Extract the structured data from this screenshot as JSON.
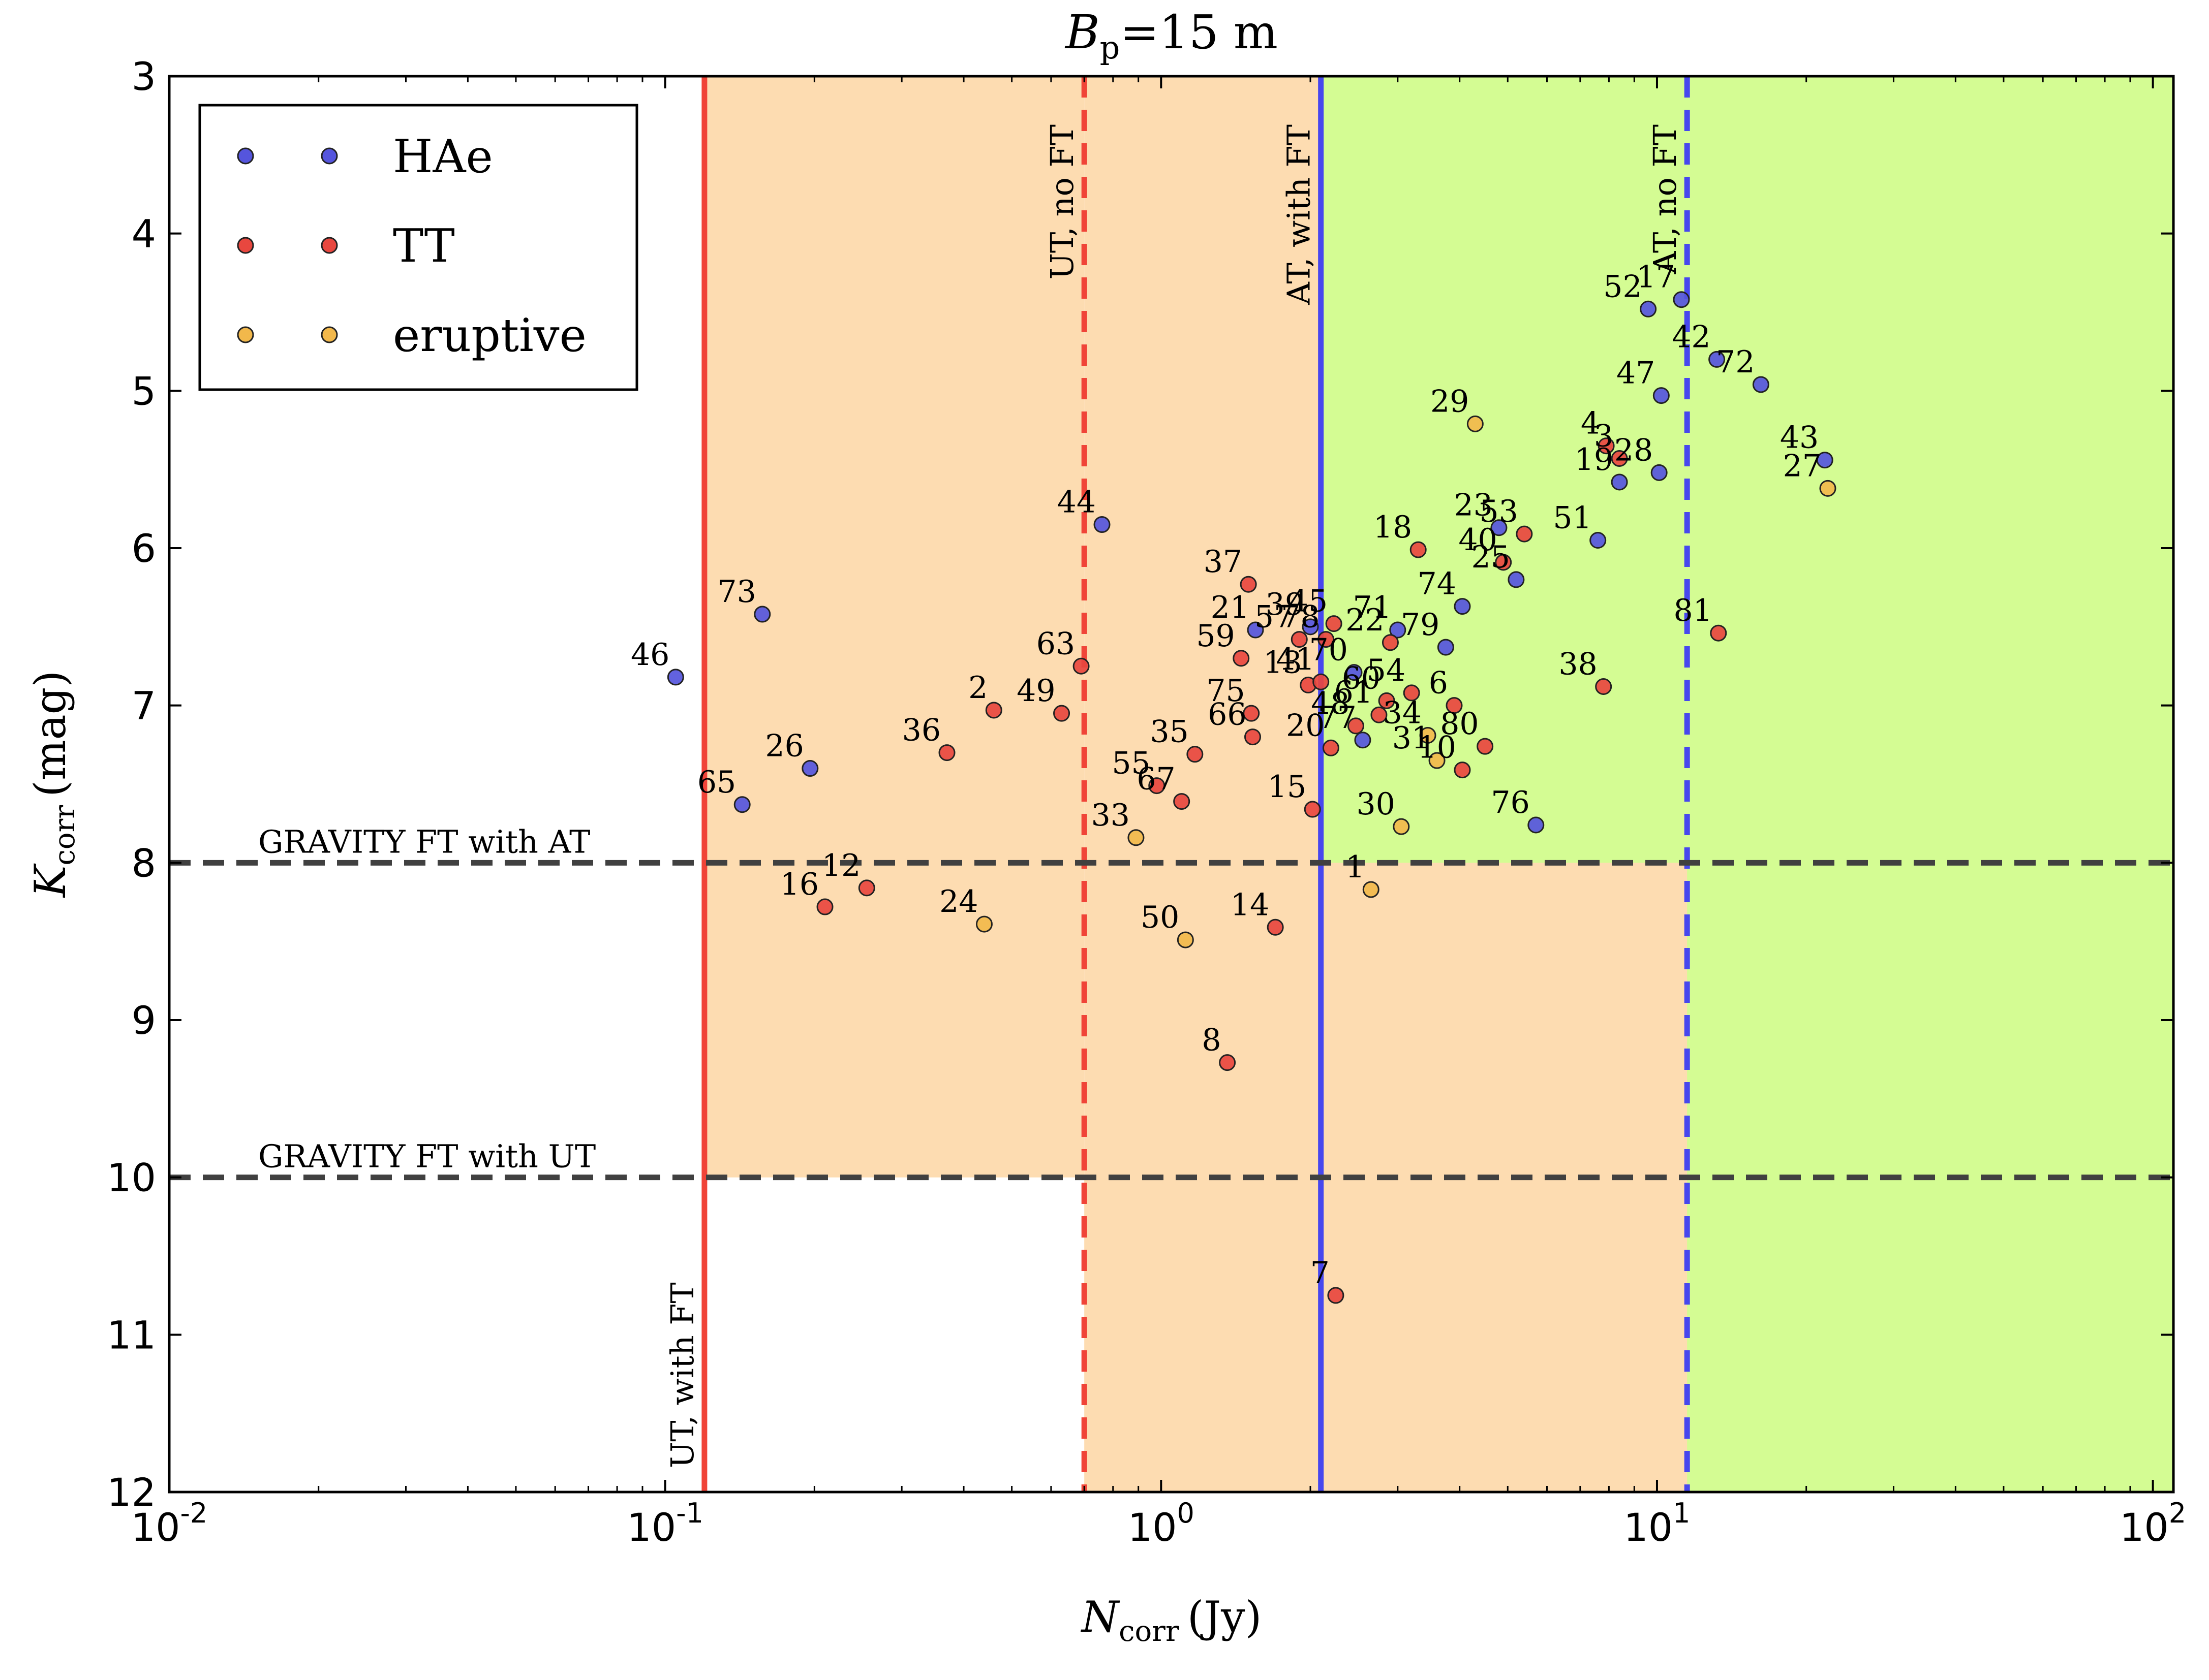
{
  "chart_data": {
    "type": "scatter",
    "title_symbol": "B",
    "title_subscript": "p",
    "title_value": "=15 m",
    "x_symbol": "N",
    "x_subscript": "corr",
    "x_unit": "(Jy)",
    "y_symbol": "K",
    "y_subscript": "corr",
    "y_unit": "(mag)",
    "x_scale": "log",
    "xlim": [
      0.01,
      110
    ],
    "ylim": [
      12,
      3
    ],
    "y_inverted": true,
    "x_ticks": [
      {
        "value": 0.01,
        "base": "10",
        "exp": "-2"
      },
      {
        "value": 0.1,
        "base": "10",
        "exp": "-1"
      },
      {
        "value": 1,
        "base": "10",
        "exp": "0"
      },
      {
        "value": 10,
        "base": "10",
        "exp": "1"
      },
      {
        "value": 100,
        "base": "10",
        "exp": "2"
      }
    ],
    "y_ticks": [
      3,
      4,
      5,
      6,
      7,
      8,
      9,
      10,
      11,
      12
    ],
    "grid": false,
    "legend_position": "top-left",
    "colors": {
      "HAe": "#5555dd",
      "TT": "#e8473f",
      "eruptive": "#f2b84b",
      "orange_zone": "#fddcb1",
      "green_zone": "#d4fc93",
      "red_line": "#f04438",
      "blue_line": "#4747ee",
      "gray_line": "#404040"
    },
    "series": [
      {
        "name": "HAe",
        "color": "#5555dd",
        "points": [
          {
            "x": 0.105,
            "y": 6.82,
            "label": "46"
          },
          {
            "x": 0.157,
            "y": 6.42,
            "label": "73"
          },
          {
            "x": 0.143,
            "y": 7.63,
            "label": "65"
          },
          {
            "x": 0.196,
            "y": 7.4,
            "label": "26"
          },
          {
            "x": 0.76,
            "y": 5.85,
            "label": "44"
          },
          {
            "x": 1.55,
            "y": 6.52,
            "label": "21"
          },
          {
            "x": 2.0,
            "y": 6.5,
            "label": "39"
          },
          {
            "x": 2.45,
            "y": 6.79,
            "label": "70"
          },
          {
            "x": 2.55,
            "y": 7.22,
            "label": "77"
          },
          {
            "x": 3.0,
            "y": 6.52,
            "label": "71"
          },
          {
            "x": 3.75,
            "y": 6.63,
            "label": "79"
          },
          {
            "x": 4.05,
            "y": 6.37,
            "label": "74"
          },
          {
            "x": 4.8,
            "y": 5.87,
            "label": "23"
          },
          {
            "x": 5.2,
            "y": 6.2,
            "label": "25"
          },
          {
            "x": 5.7,
            "y": 7.76,
            "label": "76"
          },
          {
            "x": 7.6,
            "y": 5.95,
            "label": "51"
          },
          {
            "x": 8.4,
            "y": 5.58,
            "label": "19"
          },
          {
            "x": 10.1,
            "y": 5.52,
            "label": "28"
          },
          {
            "x": 9.6,
            "y": 4.48,
            "label": "52"
          },
          {
            "x": 10.2,
            "y": 5.03,
            "label": "47"
          },
          {
            "x": 11.2,
            "y": 4.42,
            "label": "17"
          },
          {
            "x": 13.2,
            "y": 4.8,
            "label": "42"
          },
          {
            "x": 16.2,
            "y": 4.96,
            "label": "72"
          },
          {
            "x": 21.8,
            "y": 5.44,
            "label": "43"
          }
        ]
      },
      {
        "name": "TT",
        "color": "#e8473f",
        "points": [
          {
            "x": 0.21,
            "y": 8.28,
            "label": "16"
          },
          {
            "x": 0.255,
            "y": 8.16,
            "label": "12"
          },
          {
            "x": 0.37,
            "y": 7.3,
            "label": "36"
          },
          {
            "x": 0.46,
            "y": 7.03,
            "label": "2"
          },
          {
            "x": 0.63,
            "y": 7.05,
            "label": "49"
          },
          {
            "x": 0.69,
            "y": 6.75,
            "label": "63"
          },
          {
            "x": 0.98,
            "y": 7.51,
            "label": "55"
          },
          {
            "x": 1.1,
            "y": 7.61,
            "label": "67"
          },
          {
            "x": 1.17,
            "y": 7.31,
            "label": "35"
          },
          {
            "x": 1.36,
            "y": 9.27,
            "label": "8"
          },
          {
            "x": 1.45,
            "y": 6.7,
            "label": "59"
          },
          {
            "x": 1.5,
            "y": 6.23,
            "label": "37"
          },
          {
            "x": 1.52,
            "y": 7.05,
            "label": "75"
          },
          {
            "x": 1.53,
            "y": 7.2,
            "label": "66"
          },
          {
            "x": 1.7,
            "y": 8.41,
            "label": "14"
          },
          {
            "x": 1.9,
            "y": 6.58,
            "label": "57"
          },
          {
            "x": 1.98,
            "y": 6.87,
            "label": "13"
          },
          {
            "x": 2.02,
            "y": 7.66,
            "label": "15"
          },
          {
            "x": 2.1,
            "y": 6.85,
            "label": "41"
          },
          {
            "x": 2.15,
            "y": 6.58,
            "label": "78"
          },
          {
            "x": 2.2,
            "y": 7.27,
            "label": "20"
          },
          {
            "x": 2.23,
            "y": 6.48,
            "label": "45"
          },
          {
            "x": 2.25,
            "y": 10.75,
            "label": "7"
          },
          {
            "x": 2.47,
            "y": 7.13,
            "label": "48"
          },
          {
            "x": 2.75,
            "y": 7.06,
            "label": "61"
          },
          {
            "x": 2.85,
            "y": 6.97,
            "label": "60"
          },
          {
            "x": 2.9,
            "y": 6.6,
            "label": "22"
          },
          {
            "x": 3.2,
            "y": 6.92,
            "label": "54"
          },
          {
            "x": 3.3,
            "y": 6.01,
            "label": "18"
          },
          {
            "x": 3.9,
            "y": 7.0,
            "label": "6"
          },
          {
            "x": 4.05,
            "y": 7.41,
            "label": "10"
          },
          {
            "x": 4.5,
            "y": 7.26,
            "label": "80"
          },
          {
            "x": 4.9,
            "y": 6.09,
            "label": "40"
          },
          {
            "x": 5.4,
            "y": 5.91,
            "label": "53"
          },
          {
            "x": 7.8,
            "y": 6.88,
            "label": "38"
          },
          {
            "x": 7.9,
            "y": 5.35,
            "label": "4"
          },
          {
            "x": 8.4,
            "y": 5.43,
            "label": "3"
          },
          {
            "x": 13.3,
            "y": 6.54,
            "label": "81"
          }
        ]
      },
      {
        "name": "eruptive",
        "color": "#f2b84b",
        "points": [
          {
            "x": 0.44,
            "y": 8.39,
            "label": "24"
          },
          {
            "x": 0.89,
            "y": 7.84,
            "label": "33"
          },
          {
            "x": 1.12,
            "y": 8.49,
            "label": "50"
          },
          {
            "x": 2.65,
            "y": 8.17,
            "label": "1"
          },
          {
            "x": 3.05,
            "y": 7.77,
            "label": "30"
          },
          {
            "x": 3.45,
            "y": 7.19,
            "label": "34"
          },
          {
            "x": 3.6,
            "y": 7.35,
            "label": "31"
          },
          {
            "x": 4.3,
            "y": 5.21,
            "label": "29"
          },
          {
            "x": 22.1,
            "y": 5.62,
            "label": "27"
          }
        ]
      }
    ],
    "reference_lines": {
      "vertical": [
        {
          "x": 0.12,
          "style": "solid",
          "color": "#f04438",
          "label": "UT, with FT"
        },
        {
          "x": 0.7,
          "style": "dashed",
          "color": "#f04438",
          "label": "UT, no FT"
        },
        {
          "x": 2.1,
          "style": "solid",
          "color": "#4747ee",
          "label": "AT, with FT"
        },
        {
          "x": 11.5,
          "style": "dashed",
          "color": "#4747ee",
          "label": "AT, no FT"
        }
      ],
      "horizontal": [
        {
          "y": 8,
          "style": "dashed",
          "color": "#404040",
          "label": "GRAVITY FT with AT"
        },
        {
          "y": 10,
          "style": "dashed",
          "color": "#404040",
          "label": "GRAVITY FT with UT"
        }
      ]
    },
    "legend": [
      {
        "name": "HAe",
        "color": "#5555dd"
      },
      {
        "name": "TT",
        "color": "#e8473f"
      },
      {
        "name": "eruptive",
        "color": "#f2b84b"
      }
    ]
  }
}
